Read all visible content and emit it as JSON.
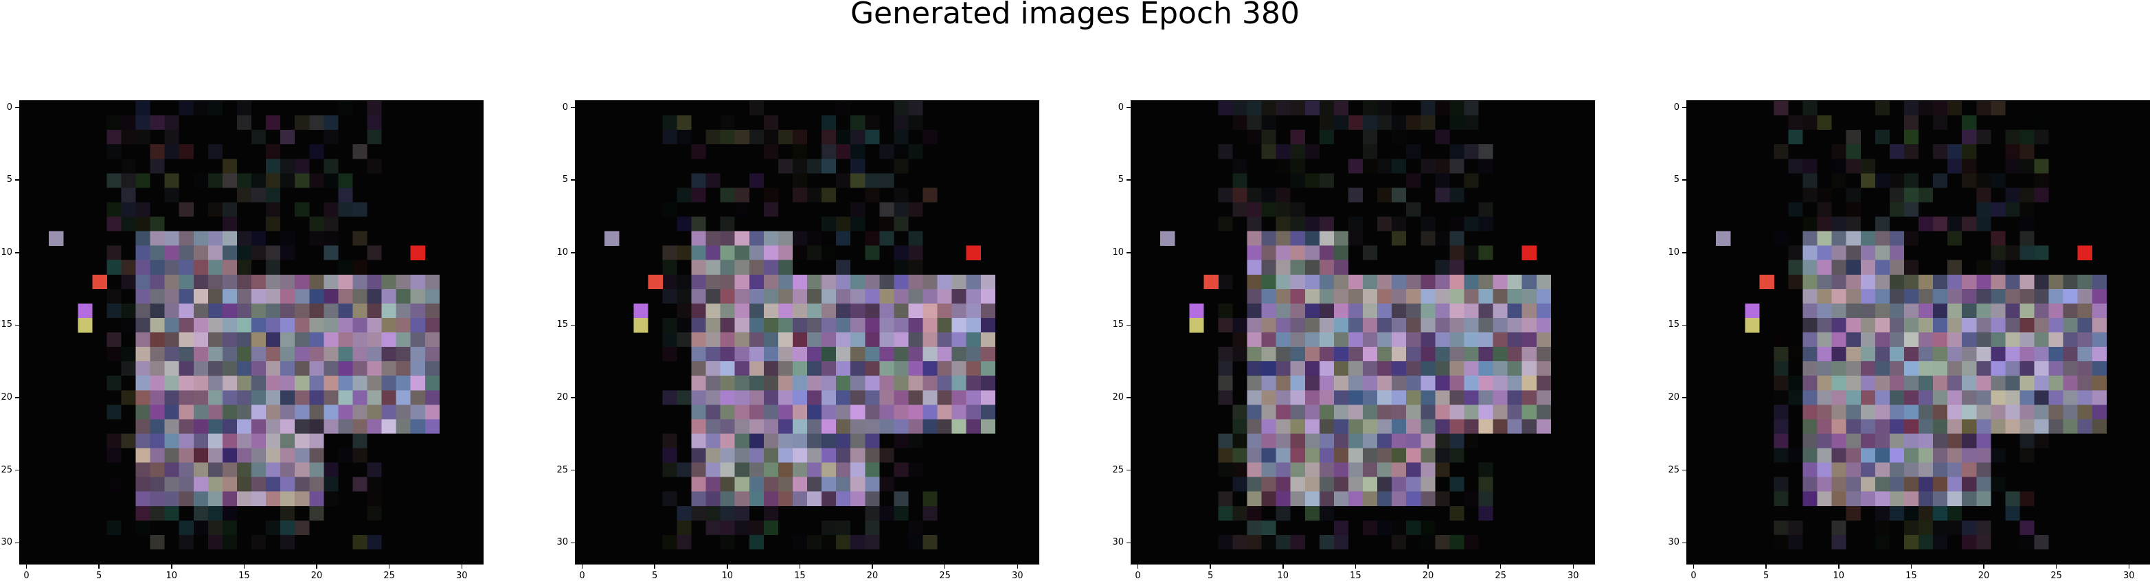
{
  "chart_data": [
    {
      "type": "heatmap",
      "title": "",
      "xticks": [
        "0",
        "5",
        "10",
        "15",
        "20",
        "25",
        "30"
      ],
      "yticks": [
        "0",
        "5",
        "10",
        "15",
        "20",
        "25",
        "30"
      ],
      "xlim": [
        -0.5,
        31.5
      ],
      "ylim": [
        31.5,
        -0.5
      ],
      "grid": false,
      "image_size": 32,
      "seed": 1
    },
    {
      "type": "heatmap",
      "title": "",
      "xticks": [
        "0",
        "5",
        "10",
        "15",
        "20",
        "25",
        "30"
      ],
      "yticks": [
        "0",
        "5",
        "10",
        "15",
        "20",
        "25",
        "30"
      ],
      "xlim": [
        -0.5,
        31.5
      ],
      "ylim": [
        31.5,
        -0.5
      ],
      "grid": false,
      "image_size": 32,
      "seed": 2
    },
    {
      "type": "heatmap",
      "title": "",
      "xticks": [
        "0",
        "5",
        "10",
        "15",
        "20",
        "25",
        "30"
      ],
      "yticks": [
        "0",
        "5",
        "10",
        "15",
        "20",
        "25",
        "30"
      ],
      "xlim": [
        -0.5,
        31.5
      ],
      "ylim": [
        31.5,
        -0.5
      ],
      "grid": false,
      "image_size": 32,
      "seed": 3
    },
    {
      "type": "heatmap",
      "title": "",
      "xticks": [
        "0",
        "5",
        "10",
        "15",
        "20",
        "25",
        "30"
      ],
      "yticks": [
        "0",
        "5",
        "10",
        "15",
        "20",
        "25",
        "30"
      ],
      "xlim": [
        -0.5,
        31.5
      ],
      "ylim": [
        31.5,
        -0.5
      ],
      "grid": false,
      "image_size": 32,
      "seed": 4
    }
  ],
  "suptitle": "Generated images Epoch 380"
}
